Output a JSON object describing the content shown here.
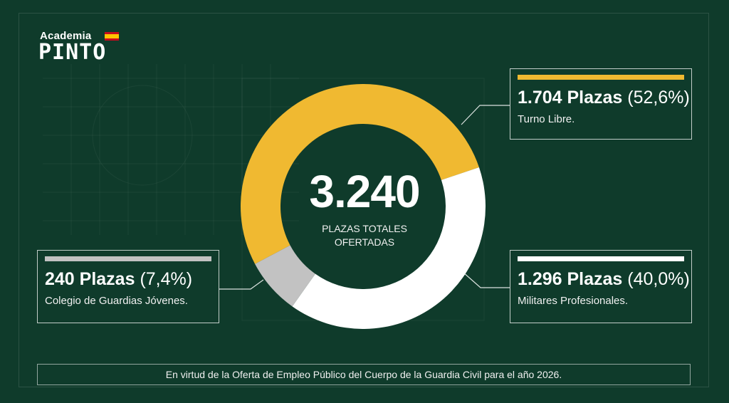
{
  "logo": {
    "top_text": "Academia",
    "main_text": "PINTO",
    "flag": "spain-flag-icon"
  },
  "colors": {
    "background": "#0f3b2b",
    "libre": "#f0b931",
    "militares": "#ffffff",
    "colegio": "#c2c2c2",
    "hole": "#0f3b2b"
  },
  "center": {
    "total": "3.240",
    "caption_line1": "PLAZAS TOTALES",
    "caption_line2": "OFERTADAS"
  },
  "callouts": {
    "libre": {
      "plazas": "1.704 Plazas",
      "pct": "(52,6%)",
      "desc": "Turno Libre."
    },
    "militares": {
      "plazas": "1.296 Plazas",
      "pct": "(40,0%)",
      "desc": "Militares Profesionales."
    },
    "colegio": {
      "plazas": "240 Plazas",
      "pct": "(7,4%)",
      "desc": "Colegio de Guardias Jóvenes."
    }
  },
  "footer": {
    "text": "En virtud de la Oferta de Empleo Público del Cuerpo de la Guardia Civil para el año 2026."
  },
  "chart_data": {
    "type": "pie",
    "donut": true,
    "categories": [
      "Turno Libre.",
      "Militares Profesionales.",
      "Colegio de Guardias Jóvenes."
    ],
    "values": [
      1704,
      1296,
      240
    ],
    "percentages": [
      52.6,
      40.0,
      7.4
    ],
    "colors": [
      "#f0b931",
      "#ffffff",
      "#c2c2c2"
    ],
    "total": 3240
  }
}
